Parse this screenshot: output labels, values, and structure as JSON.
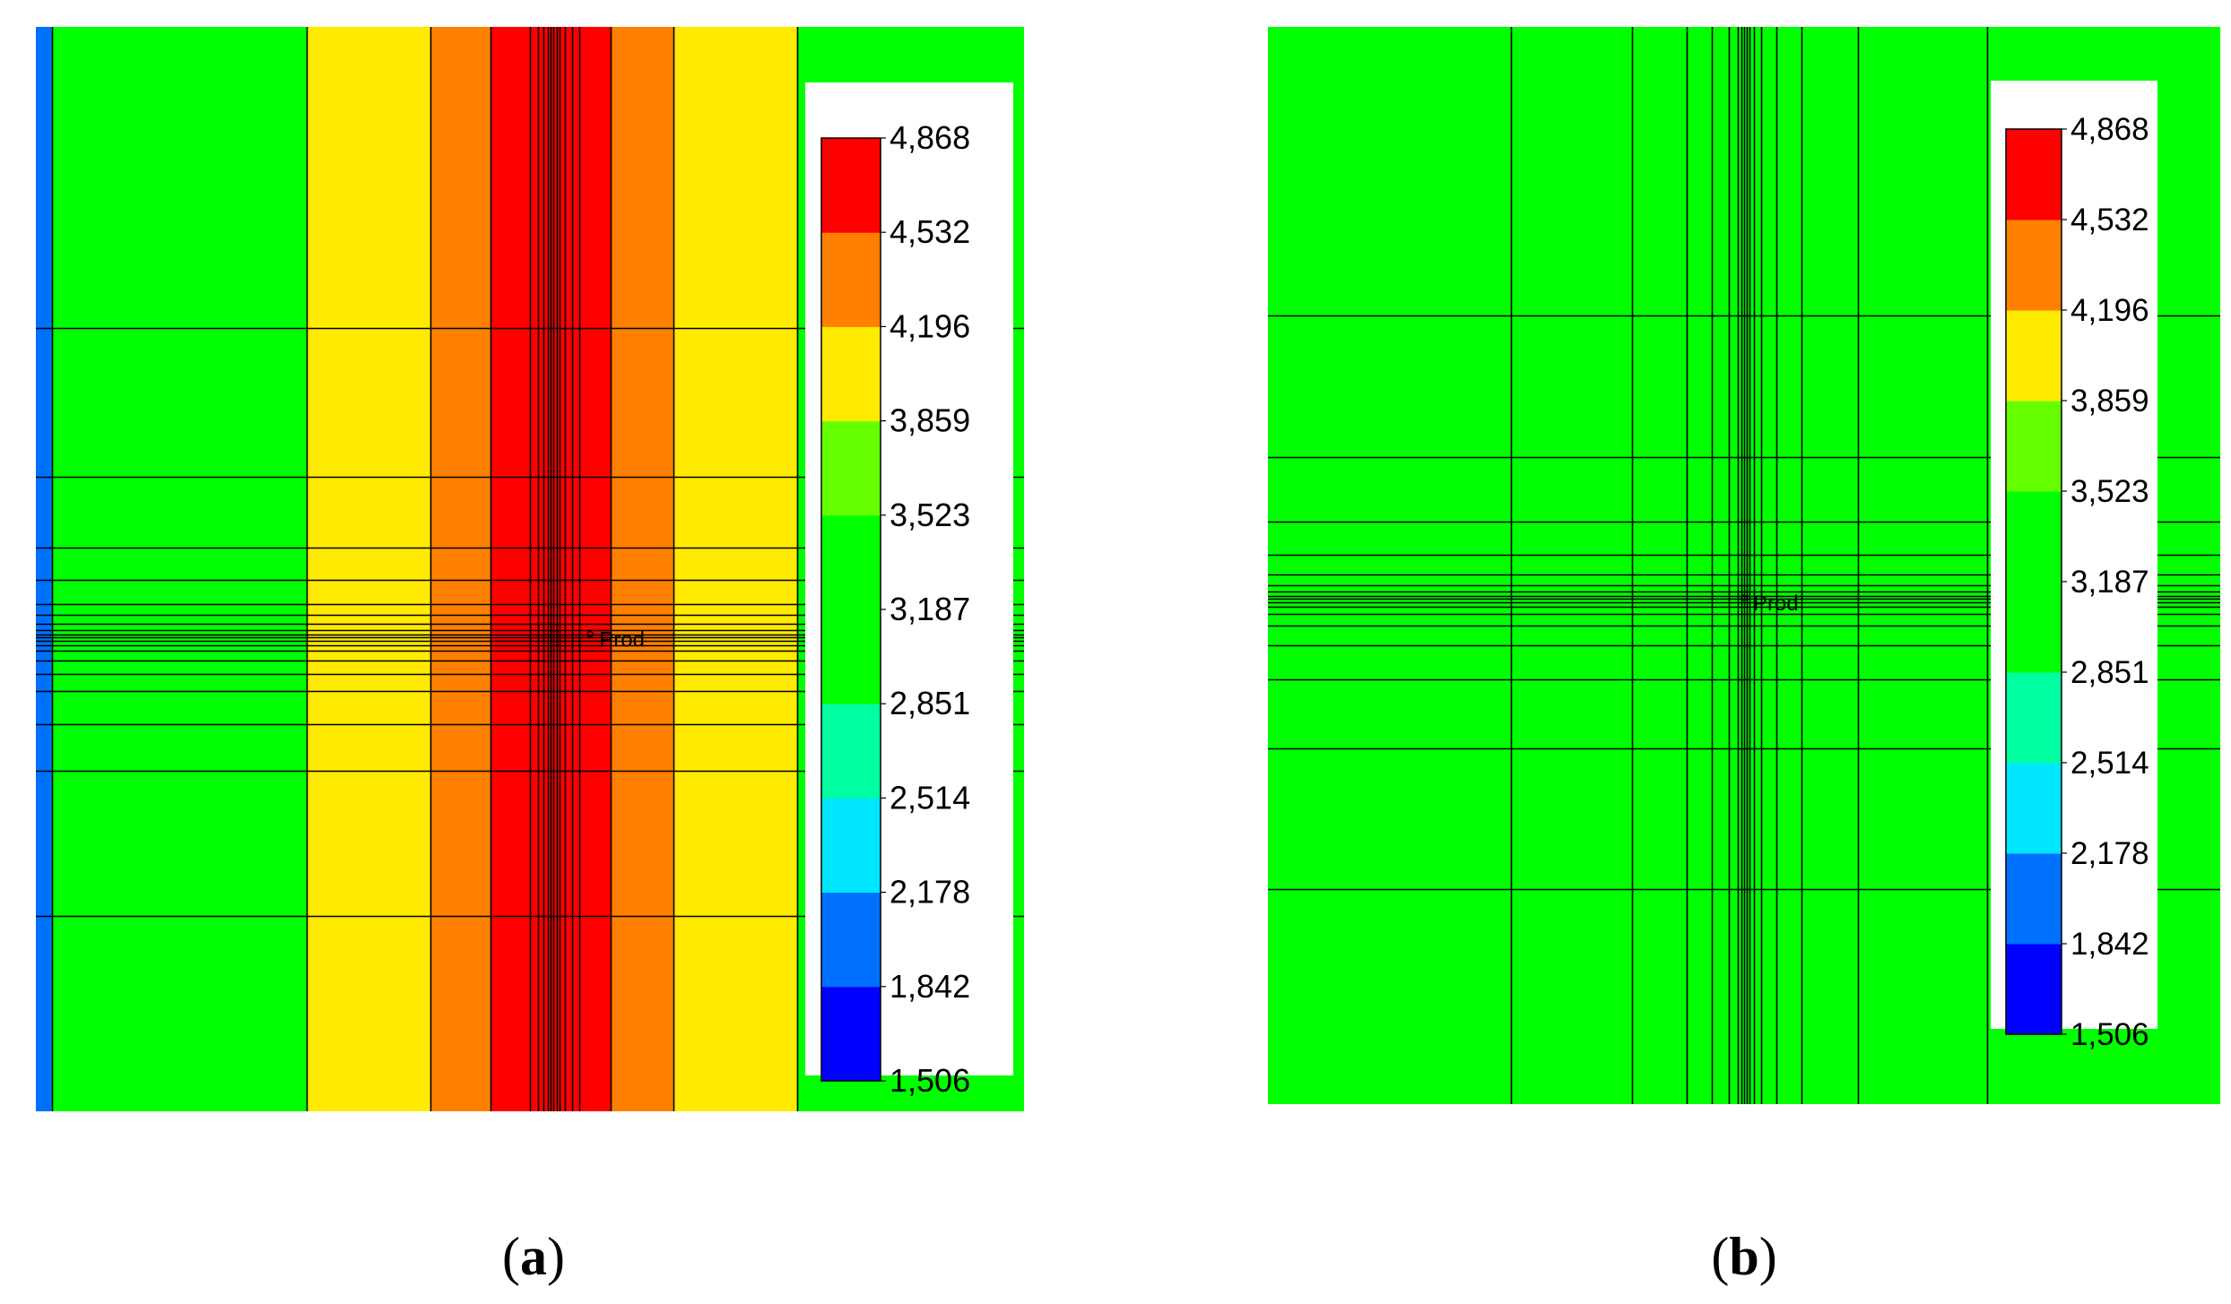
{
  "colors": {
    "blue_dark": "#0000ff",
    "blue": "#0070ff",
    "cyan": "#00e6ff",
    "aqua": "#00ffa0",
    "green": "#00ff00",
    "lime": "#66ff00",
    "yellow": "#ffea00",
    "orange": "#ff8000",
    "red": "#ff0000",
    "line": "#000000"
  },
  "chart_data": [
    {
      "type": "heatmap",
      "panel": "a",
      "title": "",
      "well_label": "Prod",
      "colorbar": {
        "levels": [
          1506,
          1842,
          2178,
          2514,
          2851,
          3187,
          3523,
          3859,
          4196,
          4532,
          4868
        ],
        "tick_labels": [
          "1,506",
          "1,842",
          "2,178",
          "2,514",
          "2,851",
          "3,187",
          "3,523",
          "3,859",
          "4,196",
          "4,532",
          "4,868"
        ],
        "colors": [
          "blue_dark",
          "blue",
          "cyan",
          "aqua",
          "green",
          "green",
          "lime",
          "yellow",
          "orange",
          "red"
        ]
      },
      "column_bands": [
        {
          "from": 0.0,
          "to": 0.016,
          "color": "blue"
        },
        {
          "from": 0.016,
          "to": 0.274,
          "color": "green"
        },
        {
          "from": 0.274,
          "to": 0.399,
          "color": "yellow"
        },
        {
          "from": 0.399,
          "to": 0.46,
          "color": "orange"
        },
        {
          "from": 0.46,
          "to": 0.582,
          "color": "red"
        },
        {
          "from": 0.582,
          "to": 0.645,
          "color": "orange"
        },
        {
          "from": 0.645,
          "to": 0.77,
          "color": "yellow"
        },
        {
          "from": 0.77,
          "to": 1.0,
          "color": "green"
        }
      ],
      "grid_x": [
        0.016,
        0.274,
        0.399,
        0.46,
        0.5,
        0.508,
        0.514,
        0.518,
        0.521,
        0.524,
        0.527,
        0.53,
        0.535,
        0.543,
        0.55,
        0.582,
        0.645,
        0.77
      ],
      "grid_y": [
        0.278,
        0.415,
        0.48,
        0.51,
        0.532,
        0.542,
        0.55,
        0.556,
        0.56,
        0.563,
        0.566,
        0.57,
        0.575,
        0.584,
        0.597,
        0.612,
        0.643,
        0.686,
        0.82
      ]
    },
    {
      "type": "heatmap",
      "panel": "b",
      "title": "",
      "well_label": "Prod",
      "colorbar": {
        "levels": [
          1506,
          1842,
          2178,
          2514,
          2851,
          3187,
          3523,
          3859,
          4196,
          4532,
          4868
        ],
        "tick_labels": [
          "1,506",
          "1,842",
          "2,178",
          "2,514",
          "2,851",
          "3,187",
          "3,523",
          "3,859",
          "4,196",
          "4,532",
          "4,868"
        ],
        "colors": [
          "blue_dark",
          "blue",
          "cyan",
          "aqua",
          "green",
          "green",
          "lime",
          "yellow",
          "orange",
          "red"
        ]
      },
      "column_bands": [
        {
          "from": 0.0,
          "to": 1.0,
          "color": "green"
        }
      ],
      "grid_x": [
        0.255,
        0.382,
        0.44,
        0.466,
        0.484,
        0.493,
        0.497,
        0.5,
        0.503,
        0.506,
        0.51,
        0.518,
        0.534,
        0.56,
        0.62,
        0.755
      ],
      "grid_y": [
        0.268,
        0.399,
        0.459,
        0.49,
        0.508,
        0.518,
        0.524,
        0.528,
        0.531,
        0.534,
        0.538,
        0.545,
        0.556,
        0.574,
        0.606,
        0.67,
        0.8
      ]
    }
  ],
  "captions": [
    {
      "letter": "a"
    },
    {
      "letter": "b"
    }
  ]
}
